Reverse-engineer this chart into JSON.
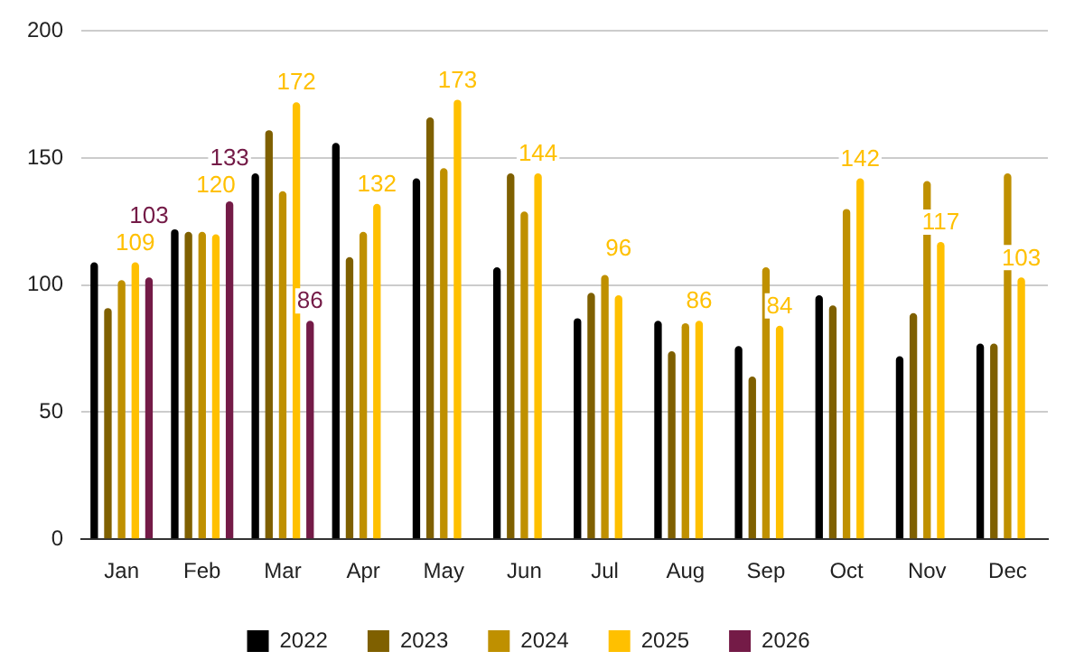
{
  "chart_data": {
    "type": "bar",
    "categories": [
      "Jan",
      "Feb",
      "Mar",
      "Apr",
      "May",
      "Jun",
      "Jul",
      "Aug",
      "Sep",
      "Oct",
      "Nov",
      "Dec"
    ],
    "series": [
      {
        "name": "2022",
        "color": "#000000",
        "values": [
          109,
          122,
          144,
          156,
          142,
          107,
          87,
          86,
          76,
          96,
          72,
          77
        ]
      },
      {
        "name": "2023",
        "color": "#7f6000",
        "values": [
          91,
          121,
          161,
          111,
          166,
          144,
          97,
          74,
          64,
          92,
          89,
          77
        ]
      },
      {
        "name": "2024",
        "color": "#bf9000",
        "values": [
          102,
          121,
          137,
          121,
          146,
          129,
          104,
          85,
          107,
          130,
          141,
          144
        ]
      },
      {
        "name": "2025",
        "color": "#ffc000",
        "values": [
          109,
          120,
          172,
          132,
          173,
          144,
          96,
          86,
          84,
          142,
          117,
          103
        ],
        "value_labels": [
          "109",
          "120",
          "172",
          "132",
          "173",
          "144",
          "96",
          "86",
          "84",
          "142",
          "117",
          "103"
        ]
      },
      {
        "name": "2026",
        "color": "#741b47",
        "values": [
          103,
          133,
          86,
          null,
          null,
          null,
          null,
          null,
          null,
          null,
          null,
          null
        ],
        "value_labels": [
          "103",
          "133",
          "86",
          null,
          null,
          null,
          null,
          null,
          null,
          null,
          null,
          null
        ]
      }
    ],
    "ylim": [
      0,
      200
    ],
    "yticks": [
      0,
      50,
      100,
      150,
      200
    ],
    "grid": "y",
    "legend": "bottom"
  }
}
